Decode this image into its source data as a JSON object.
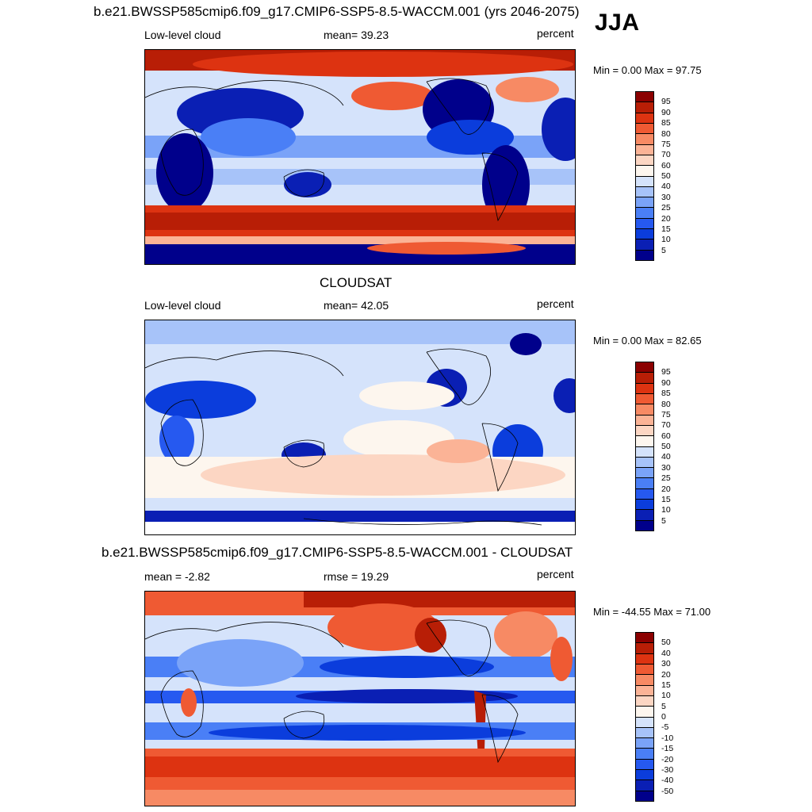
{
  "season": "JJA",
  "panels": [
    {
      "title": "b.e21.BWSSP585cmip6.f09_g17.CMIP6-SSP5-8.5-WACCM.001 (yrs 2046-2075)",
      "left_label": "Low-level cloud",
      "center_label": "mean=  39.23",
      "units": "percent",
      "minmax": "Min =   0.00 Max =  97.75",
      "colorbar_ticks": [
        "95",
        "90",
        "85",
        "80",
        "75",
        "70",
        "60",
        "50",
        "40",
        "30",
        "25",
        "20",
        "15",
        "10",
        "5"
      ]
    },
    {
      "title": "CLOUDSAT",
      "left_label": "Low-level cloud",
      "center_label": "mean=  42.05",
      "units": "percent",
      "minmax": "Min =   0.00 Max =  82.65",
      "colorbar_ticks": [
        "95",
        "90",
        "85",
        "80",
        "75",
        "70",
        "60",
        "50",
        "40",
        "30",
        "25",
        "20",
        "15",
        "10",
        "5"
      ]
    },
    {
      "title": "b.e21.BWSSP585cmip6.f09_g17.CMIP6-SSP5-8.5-WACCM.001 - CLOUDSAT",
      "left_label": "mean =  -2.82",
      "center_label": "rmse =  19.29",
      "units": "percent",
      "minmax": "Min = -44.55 Max =  71.00",
      "colorbar_ticks": [
        "50",
        "40",
        "30",
        "20",
        "15",
        "10",
        "5",
        "0",
        "-5",
        "-10",
        "-15",
        "-20",
        "-30",
        "-40",
        "-50"
      ]
    }
  ],
  "colors": {
    "levels": [
      "#00008b",
      "#0a1fb4",
      "#0b3ddc",
      "#2659f0",
      "#4a7ff6",
      "#7aa3f8",
      "#a7c3f9",
      "#d5e3fb",
      "#fdf6ee",
      "#fcd6c3",
      "#fbb396",
      "#f78a64",
      "#ef5a33",
      "#dd3311",
      "#b81e06",
      "#8b0000"
    ]
  },
  "chart_data": [
    {
      "type": "heatmap",
      "title": "b.e21.BWSSP585cmip6.f09_g17.CMIP6-SSP5-8.5-WACCM.001 (yrs 2046-2075)",
      "variable": "Low-level cloud",
      "units": "percent",
      "mean": 39.23,
      "min": 0.0,
      "max": 97.75,
      "contour_levels": [
        5,
        10,
        15,
        20,
        25,
        30,
        40,
        50,
        60,
        70,
        75,
        80,
        85,
        90,
        95
      ]
    },
    {
      "type": "heatmap",
      "title": "CLOUDSAT",
      "variable": "Low-level cloud",
      "units": "percent",
      "mean": 42.05,
      "min": 0.0,
      "max": 82.65,
      "contour_levels": [
        5,
        10,
        15,
        20,
        25,
        30,
        40,
        50,
        60,
        70,
        75,
        80,
        85,
        90,
        95
      ]
    },
    {
      "type": "heatmap",
      "title": "b.e21.BWSSP585cmip6.f09_g17.CMIP6-SSP5-8.5-WACCM.001 - CLOUDSAT",
      "units": "percent",
      "mean": -2.82,
      "rmse": 19.29,
      "min": -44.55,
      "max": 71.0,
      "contour_levels": [
        -50,
        -40,
        -30,
        -20,
        -15,
        -10,
        -5,
        0,
        5,
        10,
        15,
        20,
        30,
        40,
        50
      ]
    }
  ]
}
